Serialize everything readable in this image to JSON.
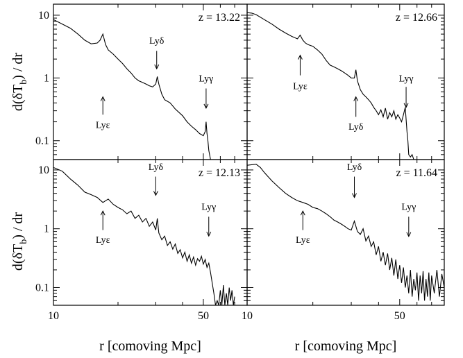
{
  "chart_data": [
    {
      "type": "line",
      "panel": "top-left",
      "label": "z = 13.22",
      "x_scale": "log",
      "y_scale": "log",
      "xlim": [
        10,
        80
      ],
      "ylim": [
        0.05,
        15
      ],
      "series": [
        {
          "x": [
            10,
            11,
            12,
            13,
            14,
            15,
            16,
            16.5,
            17.0,
            17.5,
            18,
            19,
            20,
            21,
            22,
            23,
            24,
            25,
            26,
            27,
            28,
            29,
            30,
            30.5,
            31,
            32,
            33,
            35,
            37,
            40,
            42,
            44,
            46,
            48,
            50,
            51,
            51.5,
            52,
            52.5,
            53,
            54
          ],
          "y": [
            8.5,
            7.2,
            6.2,
            5.0,
            4.0,
            3.5,
            3.6,
            4.0,
            5.0,
            3.4,
            2.8,
            2.4,
            2.0,
            1.7,
            1.4,
            1.2,
            1.0,
            0.9,
            0.85,
            0.8,
            0.75,
            0.72,
            0.8,
            1.05,
            0.8,
            0.55,
            0.45,
            0.4,
            0.32,
            0.25,
            0.2,
            0.17,
            0.15,
            0.13,
            0.12,
            0.14,
            0.2,
            0.13,
            0.1,
            0.07,
            0.05
          ]
        }
      ],
      "annotations": [
        {
          "text": "Lyδ",
          "x": 30.3,
          "y_text": 4.0,
          "direction": "down",
          "arrow_from": 2.7,
          "arrow_to": 1.4
        },
        {
          "text": "Lyγ",
          "x": 51.5,
          "y_text": 1.0,
          "direction": "down",
          "arrow_from": 0.68,
          "arrow_to": 0.33
        },
        {
          "text": "Lyε",
          "x": 17.0,
          "y_text": 0.18,
          "direction": "up",
          "arrow_from": 0.26,
          "arrow_to": 0.5
        }
      ]
    },
    {
      "type": "line",
      "panel": "top-right",
      "label": "z = 12.66",
      "x_scale": "log",
      "y_scale": "log",
      "xlim": [
        10,
        80
      ],
      "ylim": [
        0.05,
        15
      ],
      "series": [
        {
          "x": [
            10,
            10.5,
            11,
            12,
            13,
            14,
            15,
            16,
            17,
            17.5,
            18,
            18.5,
            19,
            20,
            21,
            22,
            23,
            24,
            25,
            26,
            27,
            28,
            29,
            30,
            31,
            31.5,
            32,
            33,
            34,
            35,
            36,
            37,
            38,
            39,
            40,
            41,
            42,
            43,
            44,
            45,
            46,
            47,
            48,
            49,
            50,
            51,
            52,
            53,
            54,
            54.5,
            55,
            56,
            57,
            58
          ],
          "y": [
            11.0,
            10.8,
            10.2,
            8.5,
            7.2,
            6.0,
            5.2,
            4.6,
            4.2,
            4.8,
            4.0,
            3.6,
            3.4,
            3.2,
            2.8,
            2.4,
            1.9,
            1.6,
            1.5,
            1.4,
            1.3,
            1.2,
            1.1,
            1.0,
            1.0,
            1.35,
            0.9,
            0.65,
            0.55,
            0.5,
            0.45,
            0.4,
            0.34,
            0.3,
            0.26,
            0.31,
            0.24,
            0.33,
            0.22,
            0.28,
            0.24,
            0.3,
            0.22,
            0.26,
            0.23,
            0.2,
            0.26,
            0.34,
            0.14,
            0.1,
            0.06,
            0.055,
            0.06,
            0.05
          ]
        }
      ],
      "annotations": [
        {
          "text": "Lyε",
          "x": 17.5,
          "y_text": 0.75,
          "direction": "up",
          "arrow_from": 1.1,
          "arrow_to": 2.3
        },
        {
          "text": "Lyδ",
          "x": 31.5,
          "y_text": 0.17,
          "direction": "up",
          "arrow_from": 0.24,
          "arrow_to": 0.5
        },
        {
          "text": "Lyγ",
          "x": 53.5,
          "y_text": 1.0,
          "direction": "down",
          "arrow_from": 0.72,
          "arrow_to": 0.34
        }
      ]
    },
    {
      "type": "line",
      "panel": "bottom-left",
      "label": "z = 12.13",
      "x_scale": "log",
      "y_scale": "log",
      "xlim": [
        10,
        80
      ],
      "ylim": [
        0.05,
        15
      ],
      "series": [
        {
          "x": [
            10,
            11,
            12,
            13,
            14,
            15,
            16,
            17,
            18,
            19,
            20,
            21,
            22,
            23,
            24,
            25,
            26,
            27,
            28,
            29,
            30,
            30.5,
            31,
            32,
            33,
            34,
            35,
            36,
            37,
            38,
            39,
            40,
            41,
            42,
            43,
            44,
            45,
            46,
            47,
            48,
            49,
            50,
            51,
            52,
            53,
            54,
            55,
            56,
            57,
            58,
            59,
            60,
            61,
            62,
            63,
            64,
            65,
            66,
            67,
            68,
            69,
            70
          ],
          "y": [
            11.0,
            9.5,
            7.0,
            5.5,
            4.2,
            3.8,
            3.4,
            2.8,
            3.2,
            2.6,
            2.3,
            2.1,
            1.8,
            2.0,
            1.5,
            1.7,
            1.3,
            1.5,
            1.1,
            1.3,
            0.95,
            1.5,
            0.85,
            0.65,
            0.75,
            0.52,
            0.6,
            0.45,
            0.55,
            0.38,
            0.44,
            0.32,
            0.4,
            0.28,
            0.36,
            0.26,
            0.33,
            0.24,
            0.31,
            0.28,
            0.34,
            0.25,
            0.3,
            0.22,
            0.26,
            0.18,
            0.12,
            0.08,
            0.05,
            0.06,
            0.05,
            0.09,
            0.05,
            0.11,
            0.05,
            0.08,
            0.05,
            0.1,
            0.06,
            0.09,
            0.05,
            0.07
          ]
        }
      ],
      "annotations": [
        {
          "text": "Lyδ",
          "x": 30.0,
          "y_text": 11.5,
          "direction": "down",
          "arrow_from": 7.7,
          "arrow_to": 3.7
        },
        {
          "text": "Lyγ",
          "x": 53.0,
          "y_text": 2.4,
          "direction": "down",
          "arrow_from": 1.6,
          "arrow_to": 0.75
        },
        {
          "text": "Lyε",
          "x": 17.0,
          "y_text": 0.66,
          "direction": "up",
          "arrow_from": 0.95,
          "arrow_to": 2.0
        }
      ]
    },
    {
      "type": "line",
      "panel": "bottom-right",
      "label": "z = 11.64",
      "x_scale": "log",
      "y_scale": "log",
      "xlim": [
        10,
        80
      ],
      "ylim": [
        0.05,
        15
      ],
      "series": [
        {
          "x": [
            10,
            11,
            11.5,
            12,
            13,
            14,
            15,
            16,
            17,
            18,
            19,
            20,
            21,
            22,
            23,
            24,
            25,
            26,
            27,
            28,
            29,
            30,
            31,
            32,
            33,
            34,
            35,
            36,
            37,
            38,
            39,
            40,
            41,
            42,
            43,
            44,
            45,
            46,
            47,
            48,
            49,
            50,
            51,
            52,
            53,
            54,
            55,
            56,
            57,
            58,
            59,
            60,
            61,
            62,
            63,
            64,
            65,
            66,
            67,
            68,
            69,
            70,
            72,
            74,
            76,
            78,
            80
          ],
          "y": [
            12.0,
            12.5,
            11.0,
            9.0,
            6.5,
            5.0,
            4.0,
            3.4,
            3.0,
            2.8,
            2.6,
            2.3,
            2.2,
            2.0,
            1.8,
            1.6,
            1.4,
            1.3,
            1.2,
            1.1,
            1.0,
            0.95,
            1.35,
            0.9,
            0.8,
            1.0,
            0.62,
            0.75,
            0.5,
            0.6,
            0.36,
            0.5,
            0.28,
            0.4,
            0.24,
            0.38,
            0.2,
            0.32,
            0.16,
            0.3,
            0.14,
            0.24,
            0.12,
            0.22,
            0.1,
            0.16,
            0.08,
            0.2,
            0.07,
            0.14,
            0.09,
            0.18,
            0.06,
            0.16,
            0.08,
            0.19,
            0.06,
            0.14,
            0.07,
            0.18,
            0.06,
            0.16,
            0.08,
            0.2,
            0.07,
            0.17,
            0.1
          ]
        }
      ],
      "annotations": [
        {
          "text": "Lyδ",
          "x": 31.0,
          "y_text": 11.5,
          "direction": "down",
          "arrow_from": 7.7,
          "arrow_to": 3.4
        },
        {
          "text": "Lyγ",
          "x": 55.0,
          "y_text": 2.4,
          "direction": "down",
          "arrow_from": 1.6,
          "arrow_to": 0.74
        },
        {
          "text": "Lyε",
          "x": 18.0,
          "y_text": 0.66,
          "direction": "up",
          "arrow_from": 0.95,
          "arrow_to": 2.0
        }
      ]
    }
  ],
  "axes": {
    "xlabel": "r [comoving Mpc]",
    "ylabel": "d(δT",
    "ylabel_sub": "b",
    "ylabel_tail": ") / dr",
    "x_ticks": [
      10,
      50
    ],
    "x_tick_labels": [
      "10",
      "50"
    ],
    "y_ticks": [
      0.1,
      1,
      10
    ],
    "y_tick_labels": [
      "0.1",
      "1",
      "10"
    ]
  },
  "colors": {
    "line": "#000000",
    "frame": "#000000",
    "background": "#ffffff"
  }
}
